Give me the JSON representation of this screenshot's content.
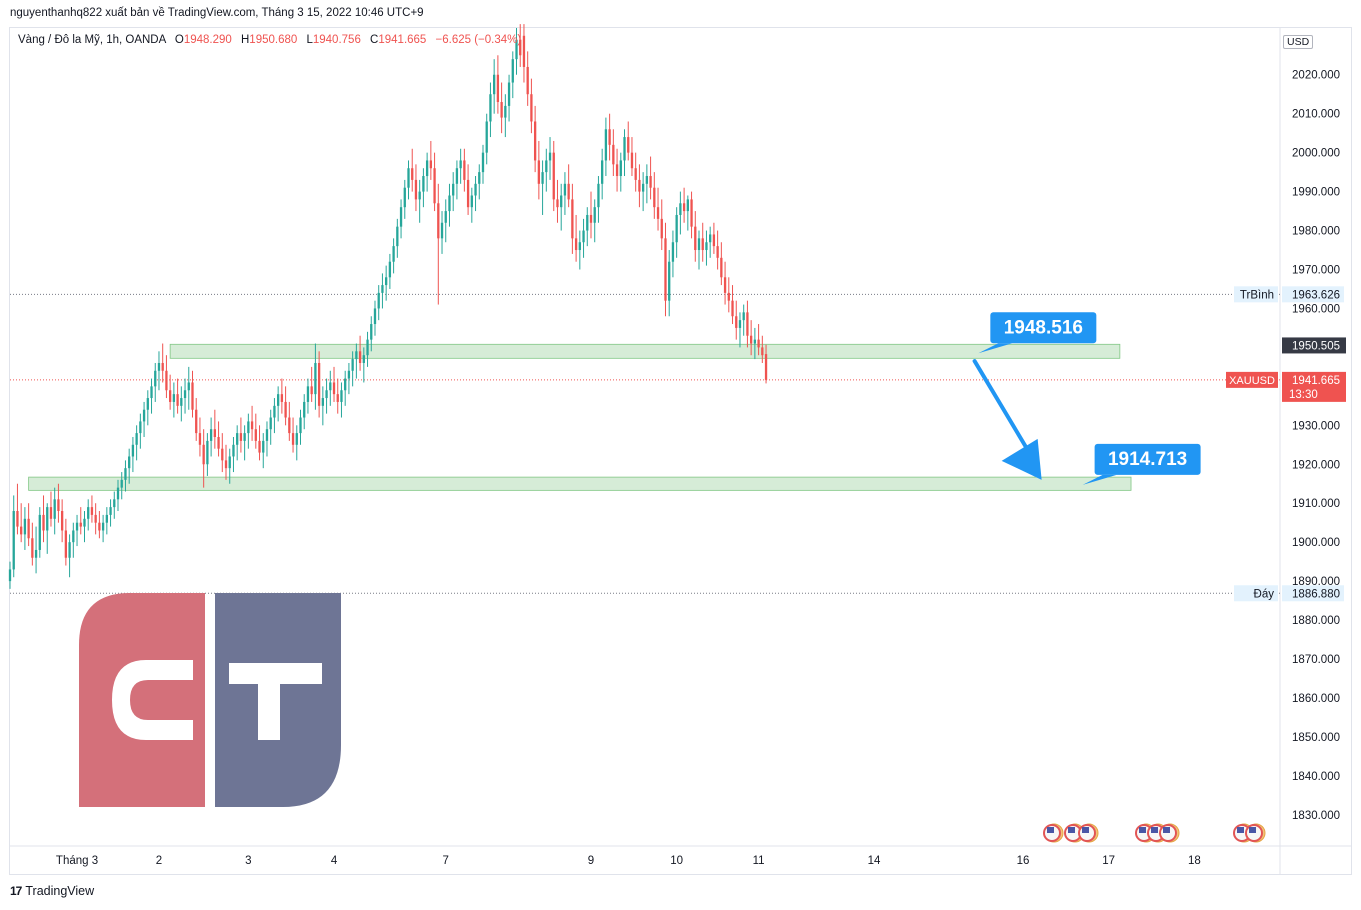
{
  "header": {
    "attribution": "nguyenthanhq822 xuất bản về TradingView.com, Tháng 3 15, 2022 10:46 UTC+9"
  },
  "legend": {
    "symbol": "Vàng / Đô la Mỹ, 1h, OANDA",
    "o_label": "O",
    "o_value": "1948.290",
    "h_label": "H",
    "h_value": "1950.680",
    "l_label": "L",
    "l_value": "1940.756",
    "c_label": "C",
    "c_value": "1941.665",
    "change": "−6.625 (−0.34%)"
  },
  "currency": "USD",
  "footer": {
    "brand_mark": "17",
    "brand": "TradingView"
  },
  "colors": {
    "up": "#26a69a",
    "down": "#ef5350",
    "zone": "#c8e6c9",
    "callout": "#2196f3",
    "logo_red": "#d4707a",
    "logo_blue": "#6e7595"
  },
  "chart_data": {
    "type": "candlestick",
    "symbol": "XAUUSD",
    "interval": "1h",
    "ylim": [
      1822,
      2032
    ],
    "y_ticks": [
      1830,
      1840,
      1850,
      1860,
      1870,
      1880,
      1890,
      1900,
      1910,
      1920,
      1930,
      1940,
      1950,
      1960,
      1970,
      1980,
      1990,
      2000,
      2010,
      2020
    ],
    "x_ticks": [
      {
        "label": "Tháng 3",
        "i": 18
      },
      {
        "label": "2",
        "i": 40
      },
      {
        "label": "3",
        "i": 64
      },
      {
        "label": "4",
        "i": 87
      },
      {
        "label": "7",
        "i": 117
      },
      {
        "label": "9",
        "i": 156
      },
      {
        "label": "10",
        "i": 179
      },
      {
        "label": "11",
        "i": 201
      },
      {
        "label": "14",
        "i": 232
      },
      {
        "label": "16",
        "i": 272
      },
      {
        "label": "17",
        "i": 295
      },
      {
        "label": "18",
        "i": 318
      }
    ],
    "x_range": [
      0,
      341
    ],
    "candles": [
      [
        1890,
        1895,
        1888,
        1893
      ],
      [
        1893,
        1912,
        1891,
        1908
      ],
      [
        1908,
        1915,
        1902,
        1904
      ],
      [
        1904,
        1910,
        1900,
        1902
      ],
      [
        1902,
        1909,
        1898,
        1906
      ],
      [
        1906,
        1910,
        1899,
        1901
      ],
      [
        1901,
        1905,
        1894,
        1896
      ],
      [
        1896,
        1904,
        1892,
        1898
      ],
      [
        1898,
        1909,
        1896,
        1907
      ],
      [
        1907,
        1912,
        1900,
        1903
      ],
      [
        1903,
        1910,
        1897,
        1909
      ],
      [
        1909,
        1913,
        1904,
        1906
      ],
      [
        1906,
        1914,
        1902,
        1911
      ],
      [
        1911,
        1915,
        1905,
        1908
      ],
      [
        1908,
        1911,
        1900,
        1903
      ],
      [
        1903,
        1906,
        1894,
        1896
      ],
      [
        1896,
        1902,
        1891,
        1900
      ],
      [
        1900,
        1905,
        1896,
        1903
      ],
      [
        1903,
        1907,
        1899,
        1905
      ],
      [
        1905,
        1909,
        1902,
        1904
      ],
      [
        1904,
        1908,
        1900,
        1906
      ],
      [
        1906,
        1911,
        1903,
        1909
      ],
      [
        1909,
        1912,
        1905,
        1907
      ],
      [
        1907,
        1910,
        1902,
        1905
      ],
      [
        1905,
        1908,
        1901,
        1903
      ],
      [
        1903,
        1907,
        1900,
        1905
      ],
      [
        1905,
        1909,
        1902,
        1907
      ],
      [
        1907,
        1911,
        1904,
        1909
      ],
      [
        1909,
        1913,
        1906,
        1911
      ],
      [
        1911,
        1916,
        1908,
        1914
      ],
      [
        1914,
        1918,
        1911,
        1916
      ],
      [
        1916,
        1921,
        1913,
        1919
      ],
      [
        1919,
        1924,
        1915,
        1922
      ],
      [
        1922,
        1927,
        1918,
        1925
      ],
      [
        1925,
        1930,
        1921,
        1928
      ],
      [
        1928,
        1933,
        1924,
        1931
      ],
      [
        1931,
        1936,
        1927,
        1934
      ],
      [
        1934,
        1939,
        1930,
        1937
      ],
      [
        1937,
        1942,
        1933,
        1940
      ],
      [
        1940,
        1946,
        1936,
        1944
      ],
      [
        1944,
        1949,
        1939,
        1946
      ],
      [
        1946,
        1951,
        1941,
        1944
      ],
      [
        1944,
        1948,
        1937,
        1939
      ],
      [
        1939,
        1943,
        1934,
        1936
      ],
      [
        1936,
        1941,
        1932,
        1938
      ],
      [
        1938,
        1942,
        1933,
        1935
      ],
      [
        1935,
        1940,
        1931,
        1937
      ],
      [
        1937,
        1942,
        1933,
        1939
      ],
      [
        1939,
        1945,
        1934,
        1941
      ],
      [
        1941,
        1944,
        1932,
        1934
      ],
      [
        1934,
        1937,
        1926,
        1928
      ],
      [
        1928,
        1932,
        1922,
        1925
      ],
      [
        1925,
        1929,
        1914,
        1920
      ],
      [
        1920,
        1928,
        1917,
        1926
      ],
      [
        1926,
        1932,
        1922,
        1929
      ],
      [
        1929,
        1934,
        1924,
        1927
      ],
      [
        1927,
        1931,
        1922,
        1924
      ],
      [
        1924,
        1928,
        1918,
        1921
      ],
      [
        1921,
        1925,
        1916,
        1919
      ],
      [
        1919,
        1924,
        1915,
        1922
      ],
      [
        1922,
        1927,
        1918,
        1925
      ],
      [
        1925,
        1930,
        1921,
        1928
      ],
      [
        1928,
        1932,
        1923,
        1926
      ],
      [
        1926,
        1930,
        1921,
        1928
      ],
      [
        1928,
        1933,
        1924,
        1931
      ],
      [
        1931,
        1935,
        1926,
        1929
      ],
      [
        1929,
        1933,
        1924,
        1926
      ],
      [
        1926,
        1930,
        1921,
        1923
      ],
      [
        1923,
        1928,
        1919,
        1926
      ],
      [
        1926,
        1931,
        1922,
        1929
      ],
      [
        1929,
        1934,
        1925,
        1932
      ],
      [
        1932,
        1937,
        1928,
        1935
      ],
      [
        1935,
        1940,
        1931,
        1938
      ],
      [
        1938,
        1942,
        1933,
        1936
      ],
      [
        1936,
        1940,
        1930,
        1932
      ],
      [
        1932,
        1936,
        1926,
        1928
      ],
      [
        1928,
        1932,
        1923,
        1925
      ],
      [
        1925,
        1930,
        1921,
        1928
      ],
      [
        1928,
        1934,
        1925,
        1932
      ],
      [
        1932,
        1938,
        1929,
        1936
      ],
      [
        1936,
        1942,
        1933,
        1940
      ],
      [
        1940,
        1945,
        1936,
        1938
      ],
      [
        1938,
        1951,
        1934,
        1946
      ],
      [
        1946,
        1949,
        1932,
        1935
      ],
      [
        1935,
        1940,
        1930,
        1937
      ],
      [
        1937,
        1942,
        1933,
        1939
      ],
      [
        1939,
        1944,
        1935,
        1941
      ],
      [
        1941,
        1945,
        1936,
        1938
      ],
      [
        1938,
        1942,
        1933,
        1936
      ],
      [
        1936,
        1941,
        1932,
        1939
      ],
      [
        1939,
        1944,
        1935,
        1942
      ],
      [
        1942,
        1946,
        1938,
        1944
      ],
      [
        1944,
        1949,
        1940,
        1947
      ],
      [
        1947,
        1951,
        1942,
        1949
      ],
      [
        1949,
        1953,
        1944,
        1946
      ],
      [
        1946,
        1950,
        1941,
        1948
      ],
      [
        1948,
        1954,
        1945,
        1952
      ],
      [
        1952,
        1958,
        1949,
        1956
      ],
      [
        1956,
        1962,
        1953,
        1960
      ],
      [
        1960,
        1966,
        1957,
        1964
      ],
      [
        1964,
        1969,
        1960,
        1966
      ],
      [
        1966,
        1971,
        1962,
        1968
      ],
      [
        1968,
        1974,
        1965,
        1972
      ],
      [
        1972,
        1978,
        1969,
        1976
      ],
      [
        1976,
        1983,
        1973,
        1981
      ],
      [
        1981,
        1988,
        1978,
        1986
      ],
      [
        1986,
        1993,
        1983,
        1991
      ],
      [
        1991,
        1998,
        1988,
        1996
      ],
      [
        1996,
        2001,
        1990,
        1993
      ],
      [
        1993,
        1997,
        1985,
        1988
      ],
      [
        1988,
        1993,
        1982,
        1990
      ],
      [
        1990,
        1996,
        1986,
        1994
      ],
      [
        1994,
        2000,
        1990,
        1998
      ],
      [
        1998,
        2003,
        1993,
        1996
      ],
      [
        1996,
        2000,
        1985,
        1987
      ],
      [
        1987,
        1992,
        1961,
        1978
      ],
      [
        1978,
        1985,
        1974,
        1982
      ],
      [
        1982,
        1988,
        1977,
        1985
      ],
      [
        1985,
        1992,
        1981,
        1989
      ],
      [
        1989,
        1995,
        1985,
        1992
      ],
      [
        1992,
        1998,
        1988,
        1996
      ],
      [
        1996,
        2001,
        1992,
        1998
      ],
      [
        1998,
        2001,
        1990,
        1993
      ],
      [
        1993,
        1997,
        1984,
        1986
      ],
      [
        1986,
        1991,
        1982,
        1989
      ],
      [
        1989,
        1994,
        1985,
        1992
      ],
      [
        1992,
        1997,
        1988,
        1995
      ],
      [
        1995,
        2002,
        1992,
        2000
      ],
      [
        2000,
        2010,
        1997,
        2008
      ],
      [
        2008,
        2018,
        2004,
        2015
      ],
      [
        2015,
        2024,
        2010,
        2020
      ],
      [
        2020,
        2025,
        2010,
        2013
      ],
      [
        2013,
        2018,
        2005,
        2009
      ],
      [
        2009,
        2015,
        2004,
        2012
      ],
      [
        2012,
        2020,
        2008,
        2018
      ],
      [
        2018,
        2026,
        2014,
        2024
      ],
      [
        2024,
        2032,
        2020,
        2029
      ],
      [
        2029,
        2033,
        2022,
        2025
      ],
      [
        2030,
        2033,
        2018,
        2022
      ],
      [
        2022,
        2026,
        2012,
        2015
      ],
      [
        2015,
        2019,
        2005,
        2008
      ],
      [
        2008,
        2012,
        1995,
        1998
      ],
      [
        1998,
        2003,
        1988,
        1992
      ],
      [
        1992,
        1998,
        1984,
        1995
      ],
      [
        1995,
        2001,
        1990,
        1998
      ],
      [
        1998,
        2004,
        1993,
        2000
      ],
      [
        2000,
        2003,
        1985,
        1988
      ],
      [
        1988,
        1993,
        1982,
        1986
      ],
      [
        1986,
        1992,
        1980,
        1989
      ],
      [
        1989,
        1995,
        1984,
        1992
      ],
      [
        1992,
        1997,
        1986,
        1988
      ],
      [
        1988,
        1992,
        1974,
        1978
      ],
      [
        1978,
        1984,
        1972,
        1975
      ],
      [
        1975,
        1980,
        1970,
        1977
      ],
      [
        1977,
        1983,
        1973,
        1980
      ],
      [
        1980,
        1986,
        1976,
        1984
      ],
      [
        1984,
        1990,
        1978,
        1982
      ],
      [
        1982,
        1988,
        1977,
        1986
      ],
      [
        1986,
        1994,
        1982,
        1992
      ],
      [
        1992,
        2001,
        1988,
        1998
      ],
      [
        1998,
        2009,
        1994,
        2006
      ],
      [
        2006,
        2010,
        1998,
        2002
      ],
      [
        2002,
        2006,
        1994,
        1997
      ],
      [
        1997,
        2001,
        1990,
        1994
      ],
      [
        1994,
        2000,
        1990,
        1998
      ],
      [
        1998,
        2006,
        1994,
        2004
      ],
      [
        2004,
        2008,
        1998,
        2000
      ],
      [
        2000,
        2004,
        1994,
        1996
      ],
      [
        1996,
        2000,
        1990,
        1993
      ],
      [
        1993,
        1997,
        1986,
        1990
      ],
      [
        1990,
        1995,
        1985,
        1992
      ],
      [
        1992,
        1997,
        1987,
        1994
      ],
      [
        1994,
        1999,
        1988,
        1991
      ],
      [
        1991,
        1995,
        1983,
        1986
      ],
      [
        1986,
        1991,
        1980,
        1983
      ],
      [
        1983,
        1988,
        1975,
        1978
      ],
      [
        1978,
        1982,
        1958,
        1962
      ],
      [
        1962,
        1975,
        1958,
        1972
      ],
      [
        1972,
        1980,
        1968,
        1977
      ],
      [
        1977,
        1986,
        1973,
        1984
      ],
      [
        1984,
        1990,
        1979,
        1987
      ],
      [
        1987,
        1991,
        1982,
        1985
      ],
      [
        1985,
        1989,
        1980,
        1988
      ],
      [
        1988,
        1990,
        1978,
        1981
      ],
      [
        1981,
        1985,
        1972,
        1975
      ],
      [
        1975,
        1980,
        1970,
        1978
      ],
      [
        1978,
        1982,
        1972,
        1975
      ],
      [
        1975,
        1980,
        1971,
        1977
      ],
      [
        1977,
        1981,
        1973,
        1979
      ],
      [
        1979,
        1982,
        1974,
        1976
      ],
      [
        1976,
        1980,
        1970,
        1973
      ],
      [
        1973,
        1977,
        1966,
        1968
      ],
      [
        1968,
        1972,
        1961,
        1964
      ],
      [
        1964,
        1968,
        1959,
        1962
      ],
      [
        1962,
        1966,
        1956,
        1958
      ],
      [
        1958,
        1962,
        1952,
        1955
      ],
      [
        1955,
        1959,
        1950,
        1957
      ],
      [
        1957,
        1961,
        1953,
        1959
      ],
      [
        1959,
        1962,
        1950,
        1953
      ],
      [
        1953,
        1957,
        1948,
        1951
      ],
      [
        1951,
        1955,
        1947,
        1952
      ],
      [
        1952,
        1956,
        1948,
        1950
      ],
      [
        1950,
        1953,
        1946,
        1948
      ],
      [
        1948.29,
        1950.68,
        1940.756,
        1941.665
      ]
    ],
    "hlines": [
      {
        "label": "TrBình",
        "value": "1963.626",
        "y": 1963.626,
        "color": "#787b86"
      },
      {
        "label": "Đáy",
        "value": "1886.880",
        "y": 1886.88,
        "color": "#787b86"
      }
    ],
    "current_price": {
      "symbol": "XAUUSD",
      "value": "1941.665",
      "countdown": "13:30",
      "y": 1941.665
    },
    "marker_price": {
      "value": "1950.505",
      "y": 1950.505
    },
    "zones": [
      {
        "i_start": 43,
        "i_end": 298,
        "y_low": 1947.2,
        "y_high": 1950.8
      },
      {
        "i_start": 5,
        "i_end": 301,
        "y_low": 1913.3,
        "y_high": 1916.7
      }
    ],
    "callouts": [
      {
        "label": "1948.516",
        "anchor_i": 260,
        "anchor_y": 1948.5
      },
      {
        "label": "1914.713",
        "anchor_i": 288,
        "anchor_y": 1914.7
      }
    ],
    "arrow": {
      "from_i": 259,
      "from_y": 1946.5,
      "to_i": 277,
      "to_y": 1916
    }
  }
}
